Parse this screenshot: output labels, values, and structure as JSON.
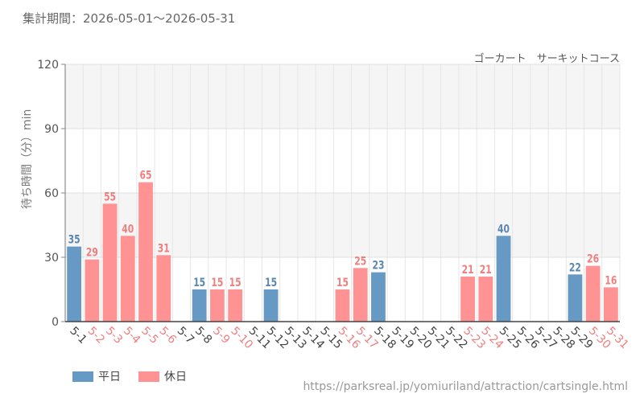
{
  "header": {
    "period": "集計期間：2026-05-01～2026-05-31",
    "attraction": "ゴーカート　サーキットコース"
  },
  "footer": {
    "source": "https://parksreal.jp/yomiuriland/attraction/cartsingle.html"
  },
  "colors": {
    "weekday": "#6699c4",
    "holiday": "#ff9393",
    "weekday_text": "#5a87b0",
    "holiday_text": "#ef7f7f",
    "plot_band": "#f5f5f5"
  },
  "chart_data": {
    "type": "bar",
    "ylabel": "待ち時間（分）min",
    "ylim": [
      0,
      120
    ],
    "yticks": [
      "0",
      "30",
      "60",
      "90",
      "120"
    ],
    "grid": true,
    "legend_position": "bottom-left",
    "series": [
      {
        "name": "平日",
        "key": "weekday"
      },
      {
        "name": "休日",
        "key": "holiday"
      }
    ],
    "categories": [
      "5-1",
      "5-2",
      "5-3",
      "5-4",
      "5-5",
      "5-6",
      "5-7",
      "5-8",
      "5-9",
      "5-10",
      "5-11",
      "5-12",
      "5-13",
      "5-14",
      "5-15",
      "5-16",
      "5-17",
      "5-18",
      "5-19",
      "5-20",
      "5-21",
      "5-22",
      "5-23",
      "5-24",
      "5-25",
      "5-26",
      "5-27",
      "5-28",
      "5-29",
      "5-30",
      "5-31"
    ],
    "values": [
      35,
      29,
      55,
      40,
      65,
      31,
      null,
      15,
      15,
      15,
      null,
      15,
      null,
      null,
      null,
      15,
      25,
      23,
      null,
      null,
      null,
      null,
      21,
      21,
      40,
      null,
      null,
      null,
      22,
      26,
      16
    ],
    "day_type": [
      "weekday",
      "holiday",
      "holiday",
      "holiday",
      "holiday",
      "holiday",
      "weekday",
      "weekday",
      "holiday",
      "holiday",
      "weekday",
      "weekday",
      "weekday",
      "weekday",
      "weekday",
      "holiday",
      "holiday",
      "weekday",
      "weekday",
      "weekday",
      "weekday",
      "weekday",
      "holiday",
      "holiday",
      "weekday",
      "weekday",
      "weekday",
      "weekday",
      "weekday",
      "holiday",
      "holiday"
    ]
  }
}
